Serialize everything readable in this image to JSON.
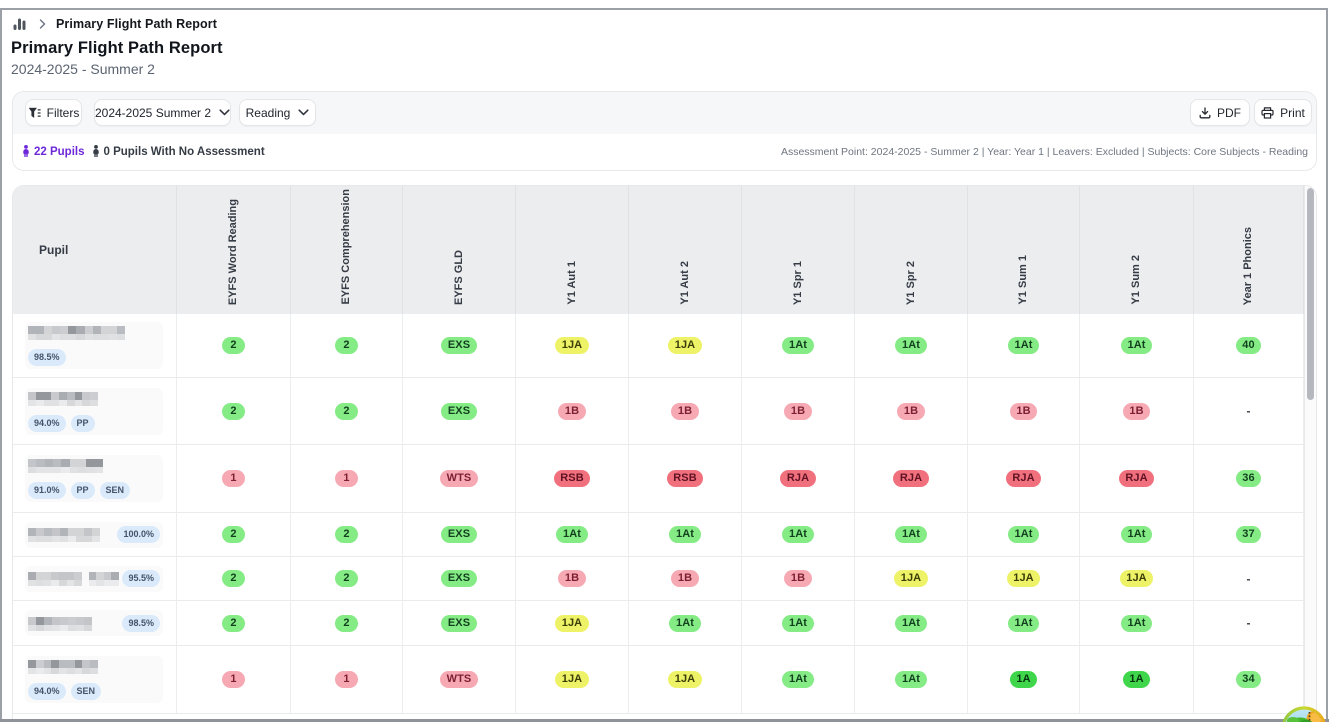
{
  "breadcrumb": {
    "icon": "bar-chart-icon",
    "current_page": "Primary Flight Path Report"
  },
  "header": {
    "title": "Primary Flight Path Report",
    "subtitle": "2024-2025 - Summer 2"
  },
  "toolbar": {
    "filters_label": "Filters",
    "assessment_period": "2024-2025 Summer 2",
    "subject": "Reading",
    "pdf_label": "PDF",
    "print_label": "Print"
  },
  "stats": {
    "pupils_count": "22 Pupils",
    "no_assessment_count": "0 Pupils With No Assessment",
    "filters_summary": "Assessment Point: 2024-2025 - Summer 2 | Year: Year 1 | Leavers: Excluded | Subjects: Core Subjects - Reading"
  },
  "table": {
    "pupil_header": "Pupil",
    "columns": [
      "EYFS Word Reading",
      "EYFS Comprehension",
      "EYFS GLD",
      "Y1 Aut 1",
      "Y1 Aut 2",
      "Y1 Spr 1",
      "Y1 Spr 2",
      "Y1 Sum 1",
      "Y1 Sum 2",
      "Year 1 Phonics"
    ],
    "rows": [
      {
        "layout": "stacked",
        "name_redacted": true,
        "name_segments": [
          97
        ],
        "badges": [
          "98.5%"
        ],
        "values": [
          {
            "t": "2",
            "c": "green"
          },
          {
            "t": "2",
            "c": "green"
          },
          {
            "t": "EXS",
            "c": "green"
          },
          {
            "t": "1JA",
            "c": "yellow"
          },
          {
            "t": "1JA",
            "c": "yellow"
          },
          {
            "t": "1At",
            "c": "green"
          },
          {
            "t": "1At",
            "c": "green"
          },
          {
            "t": "1At",
            "c": "green"
          },
          {
            "t": "1At",
            "c": "green"
          },
          {
            "t": "40",
            "c": "green"
          }
        ]
      },
      {
        "layout": "stacked",
        "name_redacted": true,
        "name_segments": [
          70
        ],
        "badges": [
          "94.0%",
          "PP"
        ],
        "values": [
          {
            "t": "2",
            "c": "green"
          },
          {
            "t": "2",
            "c": "green"
          },
          {
            "t": "EXS",
            "c": "green"
          },
          {
            "t": "1B",
            "c": "pink"
          },
          {
            "t": "1B",
            "c": "pink"
          },
          {
            "t": "1B",
            "c": "pink"
          },
          {
            "t": "1B",
            "c": "pink"
          },
          {
            "t": "1B",
            "c": "pink"
          },
          {
            "t": "1B",
            "c": "pink"
          },
          {
            "t": "-",
            "c": "none"
          }
        ]
      },
      {
        "layout": "stacked",
        "name_redacted": true,
        "name_segments": [
          75
        ],
        "badges": [
          "91.0%",
          "PP",
          "SEN"
        ],
        "values": [
          {
            "t": "1",
            "c": "pink"
          },
          {
            "t": "1",
            "c": "pink"
          },
          {
            "t": "WTS",
            "c": "pink"
          },
          {
            "t": "RSB",
            "c": "red"
          },
          {
            "t": "RSB",
            "c": "red"
          },
          {
            "t": "RJA",
            "c": "red"
          },
          {
            "t": "RJA",
            "c": "red"
          },
          {
            "t": "RJA",
            "c": "red"
          },
          {
            "t": "RJA",
            "c": "red"
          },
          {
            "t": "36",
            "c": "green"
          }
        ]
      },
      {
        "layout": "inline",
        "name_redacted": true,
        "name_segments": [
          72
        ],
        "badges": [
          "100.0%"
        ],
        "values": [
          {
            "t": "2",
            "c": "green"
          },
          {
            "t": "2",
            "c": "green"
          },
          {
            "t": "EXS",
            "c": "green"
          },
          {
            "t": "1At",
            "c": "green"
          },
          {
            "t": "1At",
            "c": "green"
          },
          {
            "t": "1At",
            "c": "green"
          },
          {
            "t": "1At",
            "c": "green"
          },
          {
            "t": "1At",
            "c": "green"
          },
          {
            "t": "1At",
            "c": "green"
          },
          {
            "t": "37",
            "c": "green"
          }
        ]
      },
      {
        "layout": "inline",
        "name_redacted": true,
        "name_segments": [
          54,
          30
        ],
        "badges": [
          "95.5%"
        ],
        "values": [
          {
            "t": "2",
            "c": "green"
          },
          {
            "t": "2",
            "c": "green"
          },
          {
            "t": "EXS",
            "c": "green"
          },
          {
            "t": "1B",
            "c": "pink"
          },
          {
            "t": "1B",
            "c": "pink"
          },
          {
            "t": "1B",
            "c": "pink"
          },
          {
            "t": "1JA",
            "c": "yellow"
          },
          {
            "t": "1JA",
            "c": "yellow"
          },
          {
            "t": "1JA",
            "c": "yellow"
          },
          {
            "t": "-",
            "c": "none"
          }
        ]
      },
      {
        "layout": "inline",
        "name_redacted": true,
        "name_segments": [
          64
        ],
        "badges": [
          "98.5%"
        ],
        "values": [
          {
            "t": "2",
            "c": "green"
          },
          {
            "t": "2",
            "c": "green"
          },
          {
            "t": "EXS",
            "c": "green"
          },
          {
            "t": "1JA",
            "c": "yellow"
          },
          {
            "t": "1At",
            "c": "green"
          },
          {
            "t": "1At",
            "c": "green"
          },
          {
            "t": "1At",
            "c": "green"
          },
          {
            "t": "1At",
            "c": "green"
          },
          {
            "t": "1At",
            "c": "green"
          },
          {
            "t": "-",
            "c": "none"
          }
        ]
      },
      {
        "layout": "stacked",
        "name_redacted": true,
        "name_segments": [
          70
        ],
        "badges": [
          "94.0%",
          "SEN"
        ],
        "values": [
          {
            "t": "1",
            "c": "pink"
          },
          {
            "t": "1",
            "c": "pink"
          },
          {
            "t": "WTS",
            "c": "pink"
          },
          {
            "t": "1JA",
            "c": "yellow"
          },
          {
            "t": "1JA",
            "c": "yellow"
          },
          {
            "t": "1At",
            "c": "green"
          },
          {
            "t": "1At",
            "c": "green"
          },
          {
            "t": "1A",
            "c": "bright"
          },
          {
            "t": "1A",
            "c": "bright"
          },
          {
            "t": "34",
            "c": "green"
          }
        ]
      }
    ]
  },
  "colors": {
    "accent_purple": "#6d28d9",
    "pill_green": "#85eb85",
    "pill_bright_green": "#3fd64b",
    "pill_yellow": "#eef266",
    "pill_pink": "#f6a9b3",
    "pill_red": "#f1707e",
    "badge_blue": "#daeafb",
    "header_gray": "#ecedef"
  }
}
